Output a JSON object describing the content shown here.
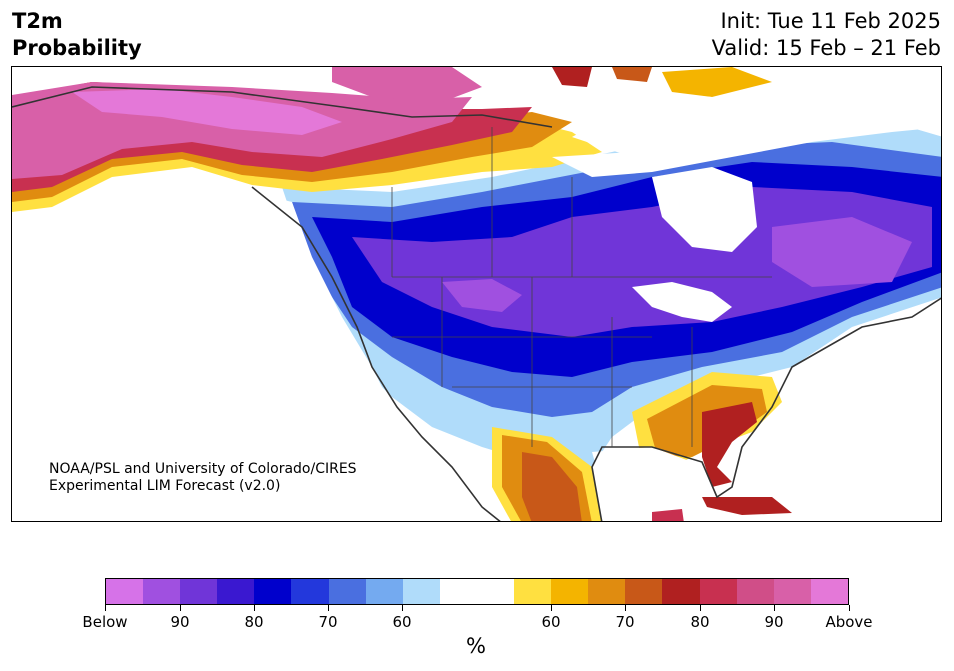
{
  "title": {
    "variable": "T2m",
    "product": "Probability",
    "init": "Init: Tue 11 Feb 2025",
    "valid": "Valid: 15 Feb – 21 Feb"
  },
  "credit": {
    "line1": "NOAA/PSL and University of Colorado/CIRES",
    "line2": "Experimental LIM Forecast (v2.0)"
  },
  "colorbar": {
    "colors": [
      "#d672e8",
      "#a050e0",
      "#7035d8",
      "#3a18d0",
      "#0000cc",
      "#2338dc",
      "#4a6fe0",
      "#74aaf0",
      "#b0dcfa",
      "#ffffff",
      "#ffffff",
      "#ffe040",
      "#f4b400",
      "#e08c10",
      "#c85818",
      "#b02020",
      "#c83050",
      "#d04e88",
      "#d860a8",
      "#e478d8"
    ],
    "labels": [
      "Below",
      "90",
      "80",
      "70",
      "60",
      "60",
      "70",
      "80",
      "90",
      "Above"
    ],
    "unit": "%"
  }
}
